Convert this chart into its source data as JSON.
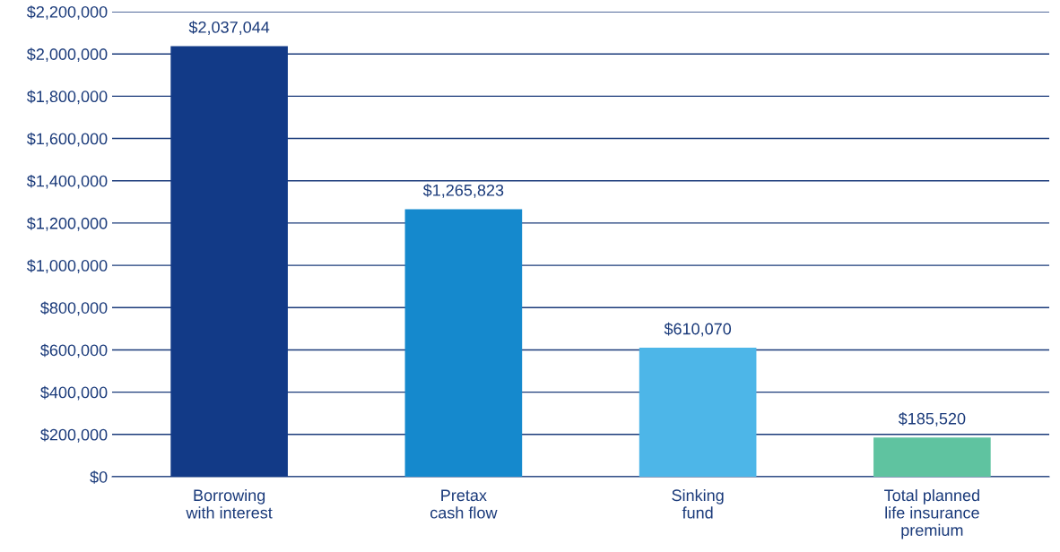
{
  "chart_data": {
    "type": "bar",
    "categories": [
      "Borrowing\nwith interest",
      "Pretax\ncash flow",
      "Sinking\nfund",
      "Total planned\nlife insurance\npremium"
    ],
    "values": [
      2037044,
      1265823,
      610070,
      185520
    ],
    "colors": [
      "#123a87",
      "#1589cd",
      "#4db6e8",
      "#5fc3a0"
    ],
    "value_labels": [
      "$2,037,044",
      "$1,265,823",
      "$610,070",
      "$185,520"
    ],
    "ylim": [
      0,
      2200000
    ],
    "yticks": [
      {
        "value": 0,
        "label": "$0"
      },
      {
        "value": 200000,
        "label": "$200,000"
      },
      {
        "value": 400000,
        "label": "$400,000"
      },
      {
        "value": 600000,
        "label": "$600,000"
      },
      {
        "value": 800000,
        "label": "$800,000"
      },
      {
        "value": 1000000,
        "label": "$1,000,000"
      },
      {
        "value": 1200000,
        "label": "$1,200,000"
      },
      {
        "value": 1400000,
        "label": "$1,400,000"
      },
      {
        "value": 1600000,
        "label": "$1,600,000"
      },
      {
        "value": 1800000,
        "label": "$1,800,000"
      },
      {
        "value": 2000000,
        "label": "$2,000,000"
      },
      {
        "value": 2200000,
        "label": "$2,200,000"
      }
    ],
    "grid": "y"
  }
}
